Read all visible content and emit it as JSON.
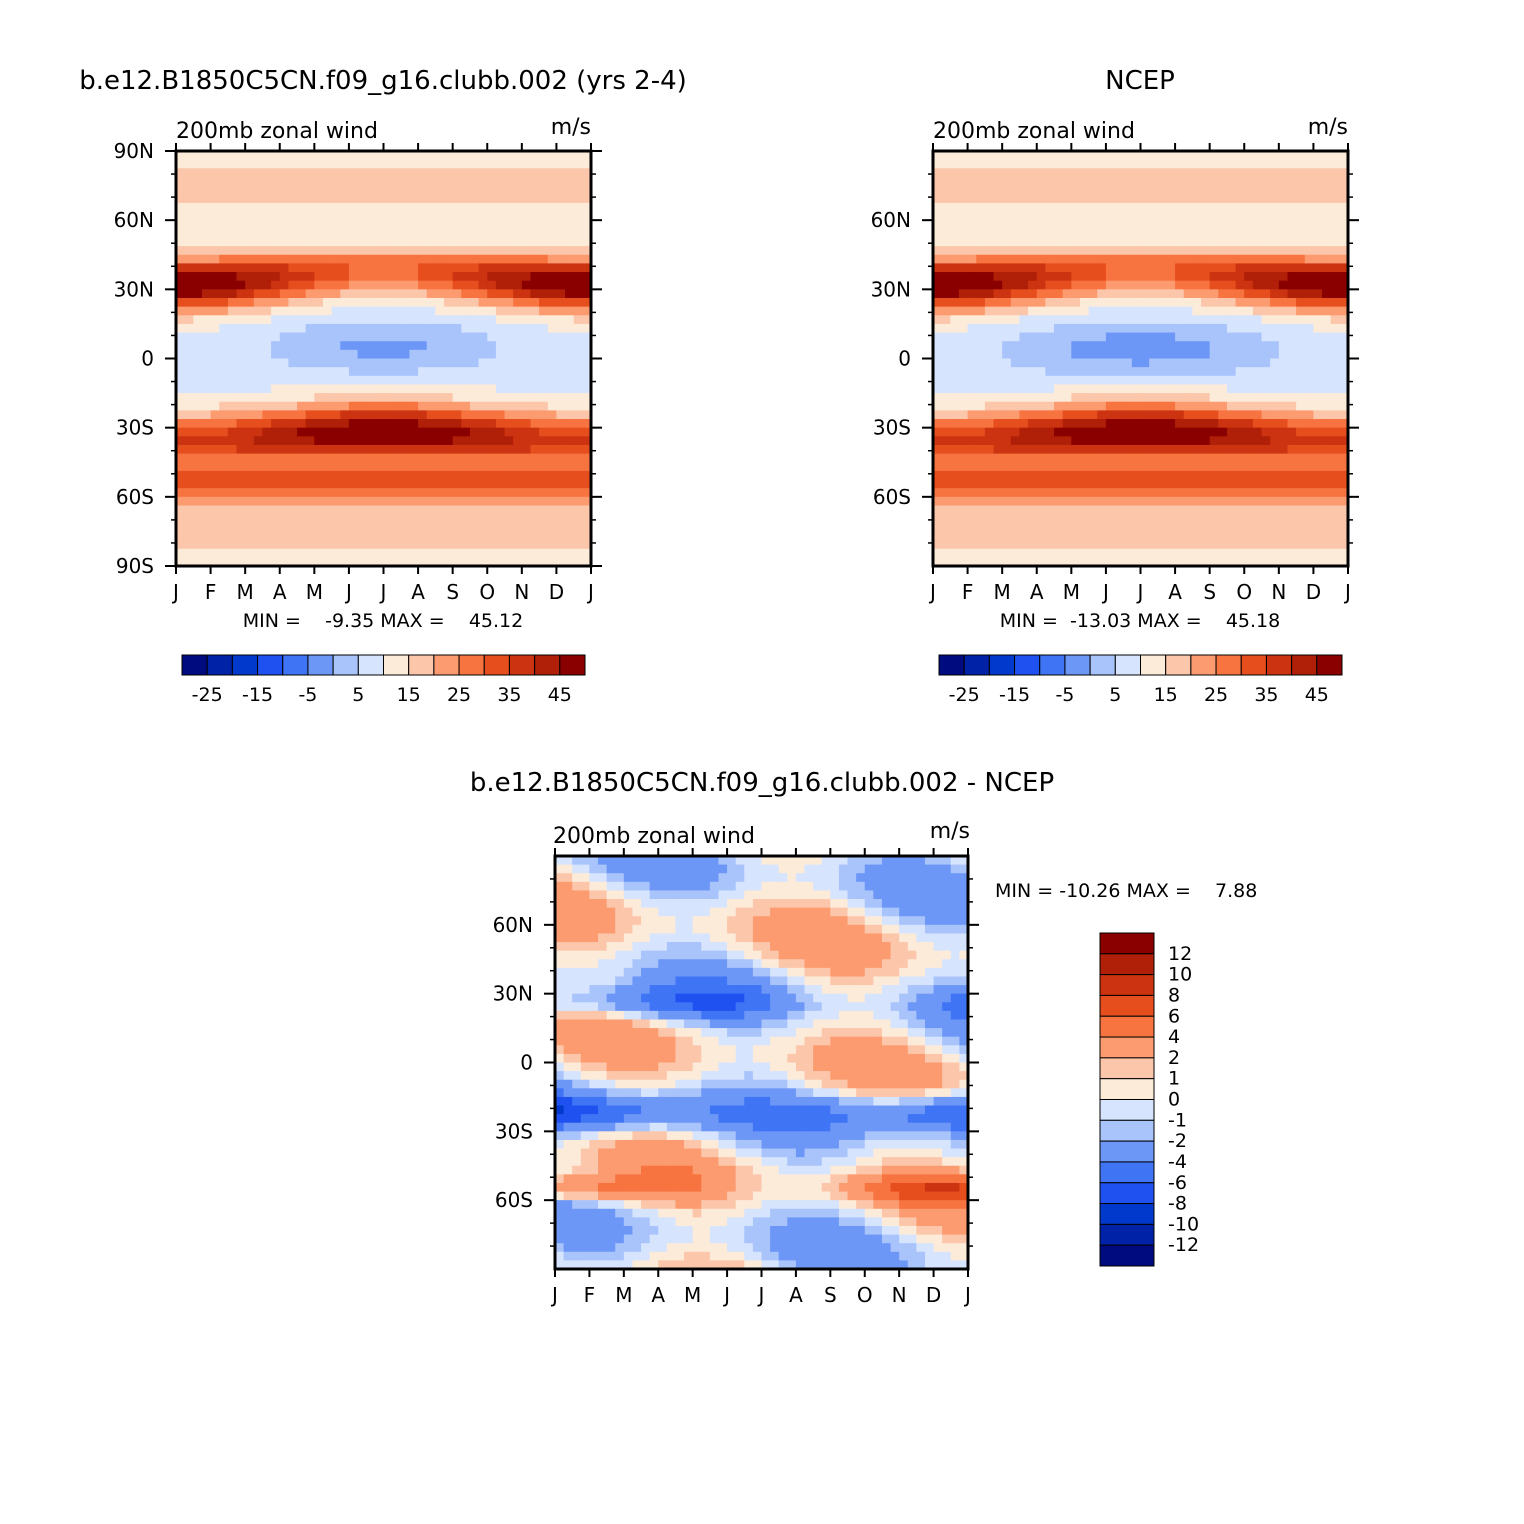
{
  "colors": {
    "absolute_scale": [
      "#000b80",
      "#0022a6",
      "#0039cc",
      "#1f51f0",
      "#3f74f5",
      "#6d97f7",
      "#a9c3fb",
      "#d6e4fd",
      "#fdebd9",
      "#fcc6ab",
      "#fb9b6f",
      "#f77340",
      "#e64e1d",
      "#cc3310",
      "#b01f08",
      "#8a0000"
    ],
    "difference_scale": [
      "#000b80",
      "#0022a6",
      "#0039cc",
      "#1f51f0",
      "#3f74f5",
      "#6d97f7",
      "#a9c3fb",
      "#d6e4fd",
      "#fdebd9",
      "#fcc6ab",
      "#fb9b6f",
      "#f77340",
      "#e64e1d",
      "#cc3310",
      "#b01f08",
      "#8a0000"
    ]
  },
  "chart_data": [
    {
      "type": "heatmap",
      "title": "b.e12.B1850C5CN.f09_g16.clubb.002 (yrs 2-4)",
      "left_label": "200mb zonal wind",
      "right_label": "m/s",
      "x_ticklabels": [
        "J",
        "F",
        "M",
        "A",
        "M",
        "J",
        "J",
        "A",
        "S",
        "O",
        "N",
        "D",
        "J"
      ],
      "y_ticklabels": [
        "90N",
        "60N",
        "30N",
        "0",
        "30S",
        "60S",
        "90S"
      ],
      "y_range": [
        -90,
        90
      ],
      "stats": "MIN =    -9.35 MAX =    45.12",
      "colorbar_levels": [
        -30,
        -25,
        -20,
        -15,
        -10,
        -5,
        0,
        5,
        10,
        15,
        20,
        25,
        30,
        35,
        40,
        45
      ],
      "colorbar_ticklabels": [
        "-25",
        "-15",
        "-5",
        "5",
        "15",
        "25",
        "35",
        "45"
      ]
    },
    {
      "type": "heatmap",
      "title": "NCEP",
      "left_label": "200mb zonal wind",
      "right_label": "m/s",
      "x_ticklabels": [
        "J",
        "F",
        "M",
        "A",
        "M",
        "J",
        "J",
        "A",
        "S",
        "O",
        "N",
        "D",
        "J"
      ],
      "y_ticklabels": [
        "60N",
        "30N",
        "0",
        "30S",
        "60S"
      ],
      "y_range": [
        -90,
        90
      ],
      "stats": "MIN =  -13.03 MAX =    45.18",
      "colorbar_levels": [
        -30,
        -25,
        -20,
        -15,
        -10,
        -5,
        0,
        5,
        10,
        15,
        20,
        25,
        30,
        35,
        40,
        45
      ],
      "colorbar_ticklabels": [
        "-25",
        "-15",
        "-5",
        "5",
        "15",
        "25",
        "35",
        "45"
      ]
    },
    {
      "type": "heatmap",
      "title": "b.e12.B1850C5CN.f09_g16.clubb.002 - NCEP",
      "left_label": "200mb zonal wind",
      "right_label": "m/s",
      "x_ticklabels": [
        "J",
        "F",
        "M",
        "A",
        "M",
        "J",
        "J",
        "A",
        "S",
        "O",
        "N",
        "D",
        "J"
      ],
      "y_ticklabels": [
        "60N",
        "30N",
        "0",
        "30S",
        "60S"
      ],
      "y_range": [
        -90,
        90
      ],
      "stats": "MIN = -10.26 MAX =    7.88",
      "colorbar_levels": [
        -12,
        -10,
        -8,
        -6,
        -4,
        -2,
        -1,
        0,
        1,
        2,
        4,
        6,
        8,
        10,
        12
      ],
      "colorbar_ticklabels": [
        "12",
        "10",
        "8",
        "6",
        "4",
        "2",
        "1",
        "0",
        "-1",
        "-2",
        "-4",
        "-6",
        "-8",
        "-10",
        "-12"
      ]
    }
  ]
}
